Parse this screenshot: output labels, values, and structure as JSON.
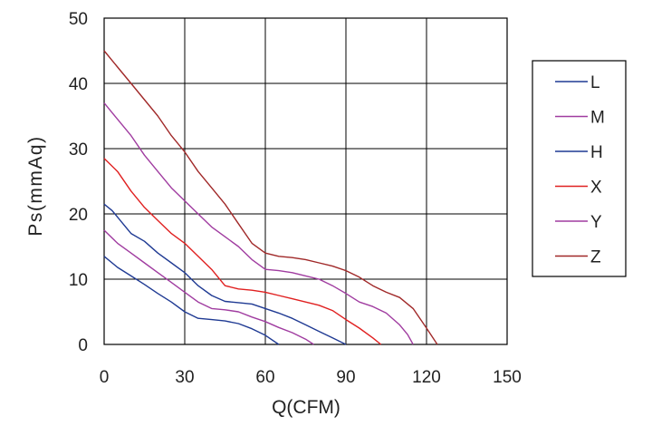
{
  "chart_data": {
    "type": "line",
    "xlabel": "Q(CFM)",
    "ylabel": "Ps(mmAq)",
    "xlim": [
      0,
      150
    ],
    "ylim": [
      0,
      50
    ],
    "x_ticks": [
      "0",
      "30",
      "60",
      "90",
      "120",
      "150"
    ],
    "y_ticks": [
      "0",
      "10",
      "20",
      "30",
      "40",
      "50"
    ],
    "grid": true,
    "legend_position": "right",
    "series": [
      {
        "name": "L",
        "color": "#1f3a93",
        "points": [
          [
            0,
            13.5
          ],
          [
            5,
            11.8
          ],
          [
            10,
            10.5
          ],
          [
            15,
            9.2
          ],
          [
            20,
            7.8
          ],
          [
            25,
            6.5
          ],
          [
            30,
            5.0
          ],
          [
            35,
            4.0
          ],
          [
            40,
            3.8
          ],
          [
            45,
            3.6
          ],
          [
            50,
            3.2
          ],
          [
            55,
            2.4
          ],
          [
            60,
            1.4
          ],
          [
            65,
            0
          ]
        ]
      },
      {
        "name": "M",
        "color": "#a03ca0",
        "points": [
          [
            0,
            17.5
          ],
          [
            5,
            15.5
          ],
          [
            10,
            14.0
          ],
          [
            15,
            12.5
          ],
          [
            20,
            11.0
          ],
          [
            25,
            9.5
          ],
          [
            30,
            8.0
          ],
          [
            35,
            6.5
          ],
          [
            40,
            5.5
          ],
          [
            45,
            5.3
          ],
          [
            50,
            5.0
          ],
          [
            55,
            4.2
          ],
          [
            60,
            3.5
          ],
          [
            65,
            2.6
          ],
          [
            70,
            1.8
          ],
          [
            75,
            0.8
          ],
          [
            78,
            0
          ]
        ]
      },
      {
        "name": "H",
        "color": "#1f3a93",
        "points": [
          [
            0,
            21.5
          ],
          [
            3,
            20.5
          ],
          [
            6,
            19.0
          ],
          [
            10,
            17.0
          ],
          [
            15,
            15.8
          ],
          [
            20,
            14.0
          ],
          [
            25,
            12.5
          ],
          [
            30,
            11.0
          ],
          [
            35,
            9.0
          ],
          [
            40,
            7.5
          ],
          [
            45,
            6.6
          ],
          [
            50,
            6.4
          ],
          [
            55,
            6.2
          ],
          [
            60,
            5.5
          ],
          [
            65,
            4.8
          ],
          [
            70,
            4.0
          ],
          [
            75,
            3.0
          ],
          [
            80,
            2.0
          ],
          [
            85,
            1.0
          ],
          [
            90,
            0
          ]
        ]
      },
      {
        "name": "X",
        "color": "#e02020",
        "points": [
          [
            0,
            28.5
          ],
          [
            5,
            26.5
          ],
          [
            10,
            23.5
          ],
          [
            15,
            21.0
          ],
          [
            20,
            19.0
          ],
          [
            25,
            17.0
          ],
          [
            30,
            15.5
          ],
          [
            35,
            13.5
          ],
          [
            40,
            11.5
          ],
          [
            45,
            9.0
          ],
          [
            50,
            8.5
          ],
          [
            55,
            8.3
          ],
          [
            60,
            8.0
          ],
          [
            65,
            7.5
          ],
          [
            70,
            7.0
          ],
          [
            75,
            6.5
          ],
          [
            80,
            6.0
          ],
          [
            85,
            5.2
          ],
          [
            90,
            3.8
          ],
          [
            95,
            2.5
          ],
          [
            100,
            1.0
          ],
          [
            103,
            0
          ]
        ]
      },
      {
        "name": "Y",
        "color": "#a03ca0",
        "points": [
          [
            0,
            37
          ],
          [
            5,
            34.5
          ],
          [
            10,
            32.0
          ],
          [
            15,
            29.0
          ],
          [
            20,
            26.5
          ],
          [
            25,
            24.0
          ],
          [
            30,
            22.0
          ],
          [
            35,
            20.0
          ],
          [
            40,
            18.0
          ],
          [
            45,
            16.5
          ],
          [
            50,
            15.0
          ],
          [
            55,
            13.0
          ],
          [
            60,
            11.5
          ],
          [
            65,
            11.3
          ],
          [
            70,
            11.0
          ],
          [
            75,
            10.5
          ],
          [
            80,
            10.0
          ],
          [
            85,
            9.0
          ],
          [
            90,
            7.8
          ],
          [
            95,
            6.5
          ],
          [
            100,
            5.8
          ],
          [
            105,
            4.8
          ],
          [
            110,
            3.0
          ],
          [
            113,
            1.5
          ],
          [
            115,
            0
          ]
        ]
      },
      {
        "name": "Z",
        "color": "#a02828",
        "points": [
          [
            0,
            45
          ],
          [
            5,
            42.5
          ],
          [
            10,
            40.0
          ],
          [
            15,
            37.5
          ],
          [
            20,
            35.0
          ],
          [
            25,
            32.0
          ],
          [
            30,
            29.5
          ],
          [
            35,
            26.5
          ],
          [
            40,
            24.0
          ],
          [
            45,
            21.5
          ],
          [
            50,
            18.5
          ],
          [
            55,
            15.5
          ],
          [
            60,
            14.0
          ],
          [
            65,
            13.5
          ],
          [
            70,
            13.3
          ],
          [
            75,
            13.0
          ],
          [
            80,
            12.5
          ],
          [
            85,
            12.0
          ],
          [
            90,
            11.3
          ],
          [
            95,
            10.3
          ],
          [
            100,
            9.0
          ],
          [
            105,
            8.0
          ],
          [
            110,
            7.2
          ],
          [
            115,
            5.5
          ],
          [
            120,
            2.5
          ],
          [
            124,
            0
          ]
        ]
      }
    ]
  }
}
